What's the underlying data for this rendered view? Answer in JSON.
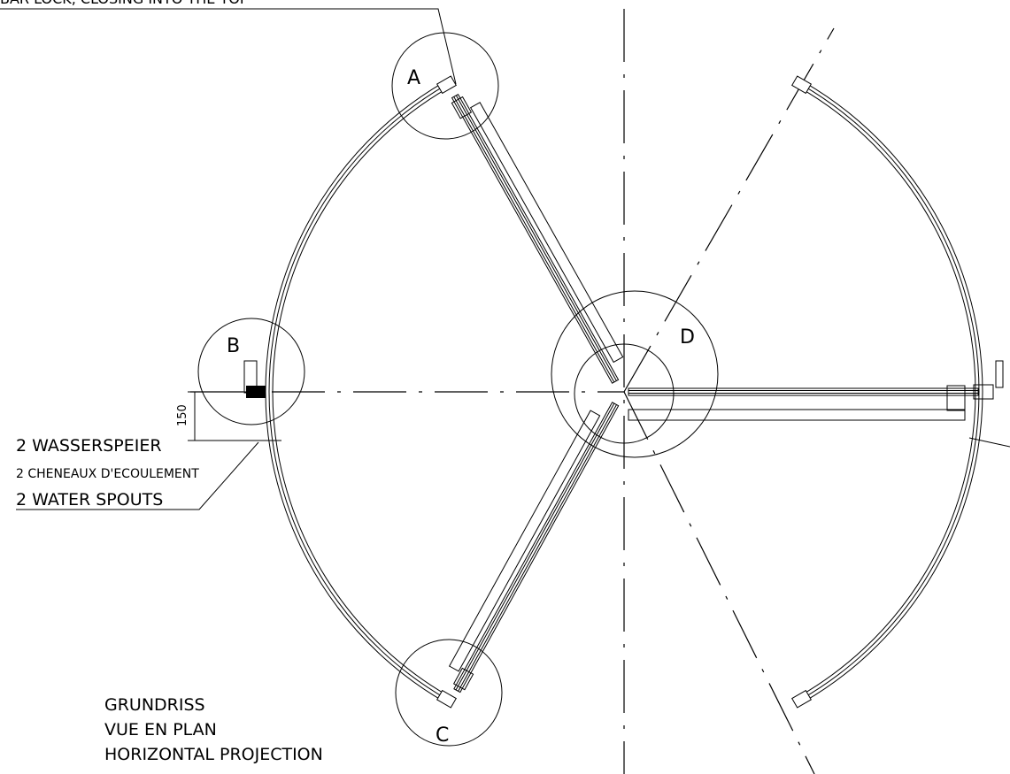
{
  "labels": {
    "top_note": "BAR LOCK, CLOSING INTO THE TOP",
    "detail_a": "A",
    "detail_b": "B",
    "detail_c": "C",
    "detail_d": "D",
    "dimension": "150",
    "spouts_de": "2 WASSERSPEIER",
    "spouts_fr": "2 CHENEAUX D'ECOULEMENT",
    "spouts_en": "2 WATER SPOUTS",
    "title_de": "GRUNDRISS",
    "title_fr": "VUE EN PLAN",
    "title_en": "HORIZONTAL PROJECTION"
  }
}
